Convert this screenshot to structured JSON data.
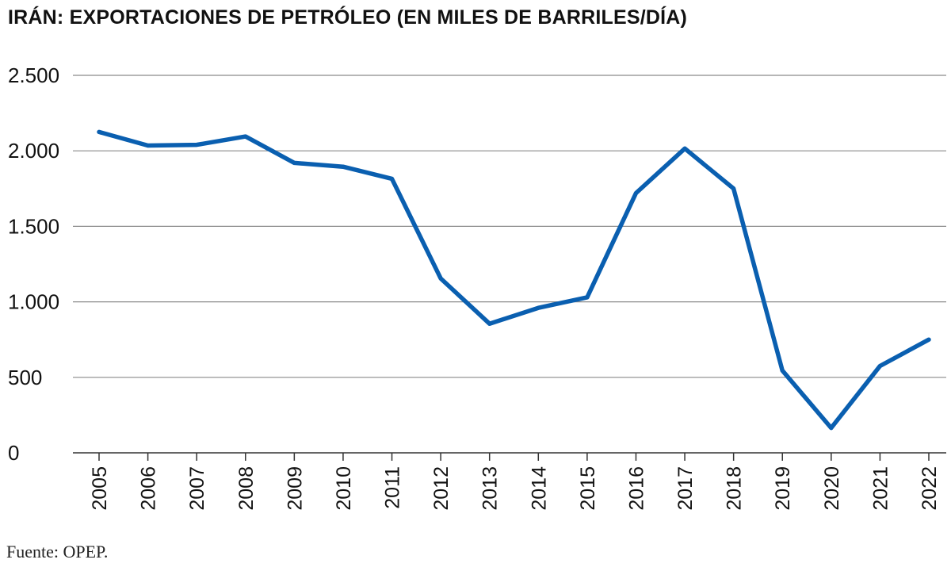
{
  "title": "IRÁN: EXPORTACIONES DE PETRÓLEO (EN MILES DE BARRILES/DÍA)",
  "source": "Fuente: OPEP.",
  "colors": {
    "line": "#0a5fb0",
    "grid": "#8a8a8a",
    "axis": "#333333"
  },
  "chart_data": {
    "type": "line",
    "title": "IRÁN: EXPORTACIONES DE PETRÓLEO (EN MILES DE BARRILES/DÍA)",
    "xlabel": "",
    "ylabel": "",
    "x": [
      "2005",
      "2006",
      "2007",
      "2008",
      "2009",
      "2010",
      "2011",
      "2012",
      "2013",
      "2014",
      "2015",
      "2016",
      "2017",
      "2018",
      "2019",
      "2020",
      "2021",
      "2022"
    ],
    "series": [
      {
        "values": [
          2125,
          2035,
          2040,
          2095,
          1920,
          1895,
          1815,
          1155,
          855,
          960,
          1030,
          1720,
          2015,
          1750,
          545,
          165,
          575,
          750
        ]
      }
    ],
    "ylim": [
      0,
      2500
    ],
    "yticks": [
      0,
      500,
      1000,
      1500,
      2000,
      2500
    ],
    "ytick_labels": [
      "0",
      "500",
      "1.000",
      "1.500",
      "2.000",
      "2.500"
    ],
    "grid": true,
    "legend": "none"
  }
}
